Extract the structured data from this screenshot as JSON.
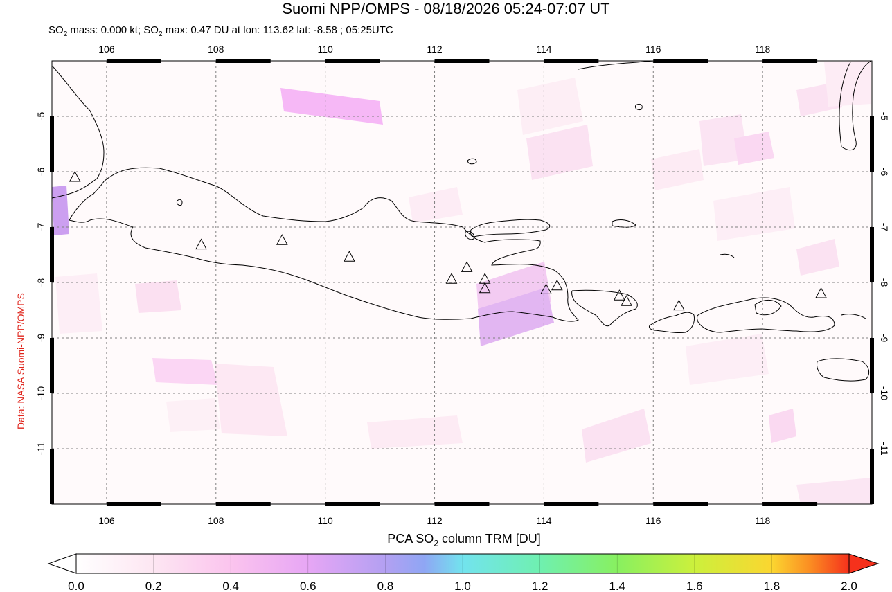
{
  "header": {
    "title": "Suomi NPP/OMPS - 08/18/2026 05:24-07:07 UT",
    "subtitle_parts": [
      "SO",
      "2",
      " mass: 0.000 kt; SO",
      "2",
      " max: 0.47 DU at lon: 113.62 lat: -8.58 ; 05:25UTC"
    ]
  },
  "credit": "Data: NASA Suomi-NPP/OMPS",
  "map": {
    "lon_range": [
      105,
      120
    ],
    "lat_range": [
      -12,
      -4
    ],
    "lon_ticks": [
      "106",
      "108",
      "110",
      "112",
      "114",
      "116",
      "118"
    ],
    "lat_ticks": [
      "-5",
      "-6",
      "-7",
      "-8",
      "-9",
      "-10",
      "-11"
    ],
    "grid": true,
    "volcanoes": [
      {
        "lon": 105.42,
        "lat": -6.1
      },
      {
        "lon": 107.73,
        "lat": -7.32
      },
      {
        "lon": 109.21,
        "lat": -7.24
      },
      {
        "lon": 110.44,
        "lat": -7.54
      },
      {
        "lon": 112.31,
        "lat": -7.94
      },
      {
        "lon": 112.59,
        "lat": -7.73
      },
      {
        "lon": 112.92,
        "lat": -7.94
      },
      {
        "lon": 112.92,
        "lat": -8.11
      },
      {
        "lon": 114.04,
        "lat": -8.13
      },
      {
        "lon": 114.24,
        "lat": -8.06
      },
      {
        "lon": 115.38,
        "lat": -8.24
      },
      {
        "lon": 115.51,
        "lat": -8.34
      },
      {
        "lon": 116.47,
        "lat": -8.42
      },
      {
        "lon": 119.07,
        "lat": -8.2
      }
    ]
  },
  "colorbar": {
    "title_parts": [
      "PCA SO",
      "2",
      " column TRM [DU]"
    ],
    "ticks": [
      "0.0",
      "0.2",
      "0.4",
      "0.6",
      "0.8",
      "1.0",
      "1.2",
      "1.4",
      "1.6",
      "1.8",
      "2.0"
    ],
    "min": 0.0,
    "max": 2.0,
    "colors": [
      "#ffffff",
      "#fde6f2",
      "#fbc4ee",
      "#e7a6f5",
      "#b3a0f2",
      "#8fa6f4",
      "#72e3ee",
      "#6ff0b0",
      "#88f060",
      "#ccf03c",
      "#fbd630",
      "#fb8c22",
      "#f5311c"
    ]
  }
}
